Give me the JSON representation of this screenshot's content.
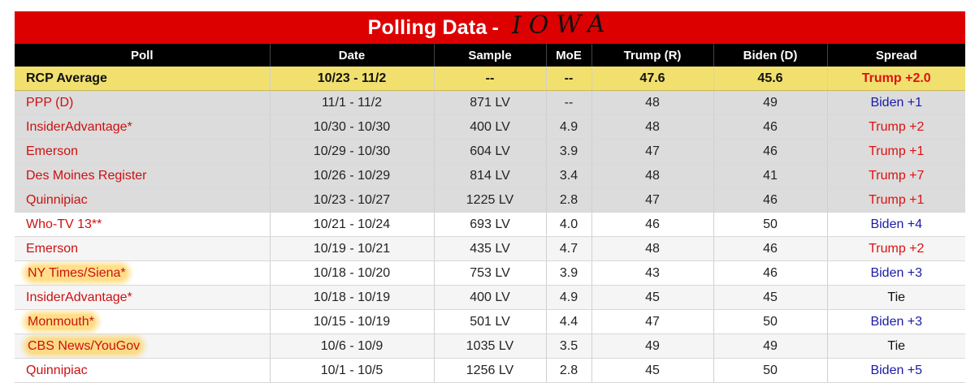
{
  "title": {
    "text": "Polling Data",
    "dash": "-",
    "handwritten": "IOWA"
  },
  "columns": [
    "Poll",
    "Date",
    "Sample",
    "MoE",
    "Trump (R)",
    "Biden (D)",
    "Spread"
  ],
  "average": {
    "poll": "RCP Average",
    "date": "10/23 - 11/2",
    "sample": "--",
    "moe": "--",
    "trump": "47.6",
    "biden": "45.6",
    "spread": "Trump +2.0"
  },
  "rows": [
    {
      "poll": "PPP (D)",
      "date": "11/1 - 11/2",
      "sample": "871 LV",
      "moe": "--",
      "trump": "48",
      "biden": "49",
      "spread": "Biden +1",
      "spread_party": "d",
      "style": "shaded",
      "highlight": false
    },
    {
      "poll": "InsiderAdvantage*",
      "date": "10/30 - 10/30",
      "sample": "400 LV",
      "moe": "4.9",
      "trump": "48",
      "biden": "46",
      "spread": "Trump +2",
      "spread_party": "r",
      "style": "shaded",
      "highlight": false
    },
    {
      "poll": "Emerson",
      "date": "10/29 - 10/30",
      "sample": "604 LV",
      "moe": "3.9",
      "trump": "47",
      "biden": "46",
      "spread": "Trump +1",
      "spread_party": "r",
      "style": "shaded",
      "highlight": false
    },
    {
      "poll": "Des Moines Register",
      "date": "10/26 - 10/29",
      "sample": "814 LV",
      "moe": "3.4",
      "trump": "48",
      "biden": "41",
      "spread": "Trump +7",
      "spread_party": "r",
      "style": "shaded",
      "highlight": false
    },
    {
      "poll": "Quinnipiac",
      "date": "10/23 - 10/27",
      "sample": "1225 LV",
      "moe": "2.8",
      "trump": "47",
      "biden": "46",
      "spread": "Trump +1",
      "spread_party": "r",
      "style": "shaded",
      "highlight": false
    },
    {
      "poll": "Who-TV 13**",
      "date": "10/21 - 10/24",
      "sample": "693 LV",
      "moe": "4.0",
      "trump": "46",
      "biden": "50",
      "spread": "Biden +4",
      "spread_party": "d",
      "style": "plain",
      "highlight": false
    },
    {
      "poll": "Emerson",
      "date": "10/19 - 10/21",
      "sample": "435 LV",
      "moe": "4.7",
      "trump": "48",
      "biden": "46",
      "spread": "Trump +2",
      "spread_party": "r",
      "style": "alt",
      "highlight": false
    },
    {
      "poll": "NY Times/Siena*",
      "date": "10/18 - 10/20",
      "sample": "753 LV",
      "moe": "3.9",
      "trump": "43",
      "biden": "46",
      "spread": "Biden +3",
      "spread_party": "d",
      "style": "plain",
      "highlight": true
    },
    {
      "poll": "InsiderAdvantage*",
      "date": "10/18 - 10/19",
      "sample": "400 LV",
      "moe": "4.9",
      "trump": "45",
      "biden": "45",
      "spread": "Tie",
      "spread_party": "t",
      "style": "alt",
      "highlight": false
    },
    {
      "poll": "Monmouth*",
      "date": "10/15 - 10/19",
      "sample": "501 LV",
      "moe": "4.4",
      "trump": "47",
      "biden": "50",
      "spread": "Biden +3",
      "spread_party": "d",
      "style": "plain",
      "highlight": true
    },
    {
      "poll": "CBS News/YouGov",
      "date": "10/6 - 10/9",
      "sample": "1035 LV",
      "moe": "3.5",
      "trump": "49",
      "biden": "49",
      "spread": "Tie",
      "spread_party": "t",
      "style": "alt",
      "highlight": true
    },
    {
      "poll": "Quinnipiac",
      "date": "10/1 - 10/5",
      "sample": "1256 LV",
      "moe": "2.8",
      "trump": "45",
      "biden": "50",
      "spread": "Biden +5",
      "spread_party": "d",
      "style": "plain",
      "highlight": false
    }
  ],
  "colors": {
    "title_bar": "#dd0000",
    "header_bar": "#000000",
    "average_row": "#f1e06e",
    "poll_link": "#cc1111",
    "trump_spread": "#dd1111",
    "biden_spread": "#1a1aaa",
    "highlighter": "#ffc428"
  }
}
